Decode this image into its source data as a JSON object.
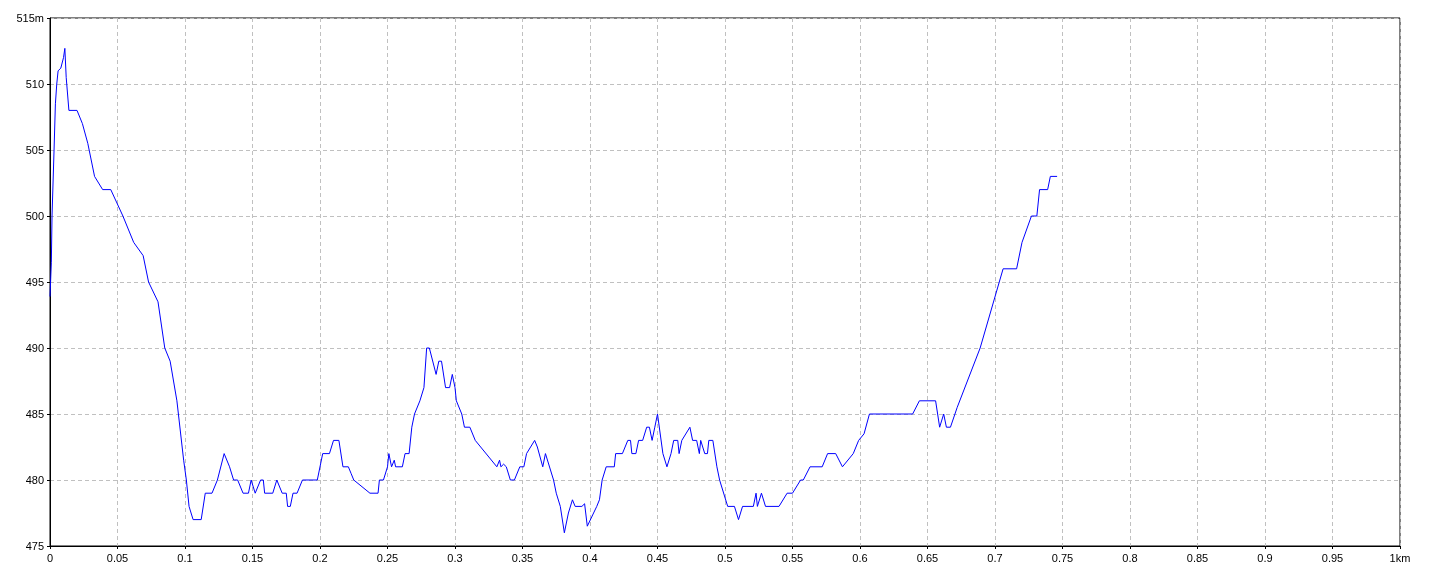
{
  "chart_data": {
    "type": "line",
    "x": [
      0,
      0.001,
      0.0015,
      0.003,
      0.004,
      0.005,
      0.006,
      0.008,
      0.01,
      0.011,
      0.012,
      0.014,
      0.02,
      0.024,
      0.028,
      0.033,
      0.039,
      0.045,
      0.054,
      0.062,
      0.069,
      0.073,
      0.08,
      0.085,
      0.089,
      0.094,
      0.099,
      0.101,
      0.103,
      0.106,
      0.112,
      0.115,
      0.12,
      0.124,
      0.129,
      0.133,
      0.136,
      0.139,
      0.143,
      0.147,
      0.149,
      0.152,
      0.156,
      0.158,
      0.159,
      0.165,
      0.168,
      0.172,
      0.175,
      0.176,
      0.178,
      0.18,
      0.183,
      0.187,
      0.198,
      0.202,
      0.207,
      0.21,
      0.214,
      0.217,
      0.221,
      0.223,
      0.225,
      0.237,
      0.243,
      0.244,
      0.247,
      0.25,
      0.251,
      0.253,
      0.255,
      0.256,
      0.261,
      0.263,
      0.266,
      0.268,
      0.27,
      0.274,
      0.277,
      0.279,
      0.281,
      0.286,
      0.288,
      0.29,
      0.293,
      0.296,
      0.298,
      0.3,
      0.301,
      0.305,
      0.307,
      0.311,
      0.315,
      0.331,
      0.333,
      0.334,
      0.336,
      0.338,
      0.341,
      0.344,
      0.348,
      0.351,
      0.353,
      0.359,
      0.361,
      0.365,
      0.367,
      0.373,
      0.375,
      0.378,
      0.381,
      0.384,
      0.387,
      0.389,
      0.394,
      0.396,
      0.398,
      0.405,
      0.407,
      0.409,
      0.412,
      0.418,
      0.419,
      0.424,
      0.428,
      0.43,
      0.431,
      0.434,
      0.436,
      0.439,
      0.442,
      0.444,
      0.446,
      0.448,
      0.45,
      0.454,
      0.457,
      0.46,
      0.462,
      0.465,
      0.466,
      0.468,
      0.474,
      0.476,
      0.479,
      0.481,
      0.482,
      0.485,
      0.487,
      0.488,
      0.491,
      0.494,
      0.496,
      0.502,
      0.507,
      0.51,
      0.513,
      0.521,
      0.523,
      0.524,
      0.527,
      0.53,
      0.54,
      0.546,
      0.55,
      0.556,
      0.558,
      0.563,
      0.572,
      0.576,
      0.582,
      0.587,
      0.595,
      0.599,
      0.603,
      0.607,
      0.639,
      0.644,
      0.656,
      0.659,
      0.662,
      0.664,
      0.667,
      0.672,
      0.689,
      0.706,
      0.716,
      0.72,
      0.727,
      0.731,
      0.733,
      0.739,
      0.741,
      0.746
    ],
    "values": [
      493.9,
      496.5,
      500,
      505,
      508.5,
      510,
      511,
      511.2,
      512,
      512.7,
      510.5,
      508,
      508,
      507,
      505.5,
      503,
      502,
      502,
      500,
      498,
      497,
      495,
      493.5,
      490,
      489,
      486,
      481.5,
      480,
      478,
      477,
      477,
      479,
      479,
      480,
      482,
      481,
      480,
      480,
      479,
      479,
      480,
      479,
      480,
      480,
      479,
      479,
      480,
      479,
      479,
      478,
      478,
      479,
      479,
      480,
      480,
      482,
      482,
      483,
      483,
      481,
      481,
      480.5,
      480,
      479,
      479,
      480,
      480,
      481,
      482,
      481,
      481.5,
      481,
      481,
      482,
      482,
      484,
      485,
      486,
      487,
      490,
      490,
      488,
      489,
      489,
      487,
      487,
      488,
      487,
      486,
      485,
      484,
      484,
      483,
      481,
      481.5,
      481,
      481.2,
      481,
      480,
      480,
      481,
      481,
      482,
      483,
      482.5,
      481,
      482,
      480,
      479,
      478,
      476,
      477.5,
      478.5,
      478,
      478,
      478.2,
      476.5,
      478,
      478.5,
      480,
      481,
      481,
      482,
      482,
      483,
      483,
      482,
      482,
      483,
      483,
      484,
      484,
      483,
      484,
      485,
      482,
      481,
      482,
      483,
      483,
      482,
      483,
      484,
      483,
      483,
      482,
      483,
      482,
      482,
      483,
      483,
      481,
      480,
      478,
      478,
      477,
      478,
      478,
      479,
      478,
      479,
      478,
      478,
      479,
      479,
      480,
      480,
      481,
      481,
      482,
      482,
      481,
      482,
      483,
      483.5,
      485,
      485,
      486,
      486,
      484,
      485,
      484,
      484,
      485.5,
      490,
      496,
      496,
      498,
      500,
      500,
      502,
      502,
      503,
      503
    ],
    "color": "#0000ff",
    "xlim": [
      0,
      1
    ],
    "ylim": [
      475,
      515
    ],
    "xticks": [
      0,
      0.05,
      0.1,
      0.15,
      0.2,
      0.25,
      0.3,
      0.35,
      0.4,
      0.45,
      0.5,
      0.55,
      0.6,
      0.65,
      0.7,
      0.75,
      0.8,
      0.85,
      0.9,
      0.95,
      {
        "value": 1,
        "label": "1km"
      }
    ],
    "yticks": [
      475,
      480,
      485,
      490,
      495,
      500,
      505,
      510,
      {
        "value": 515,
        "label": "515m"
      }
    ],
    "grid": true,
    "marker": "none",
    "line_style": "solid"
  }
}
